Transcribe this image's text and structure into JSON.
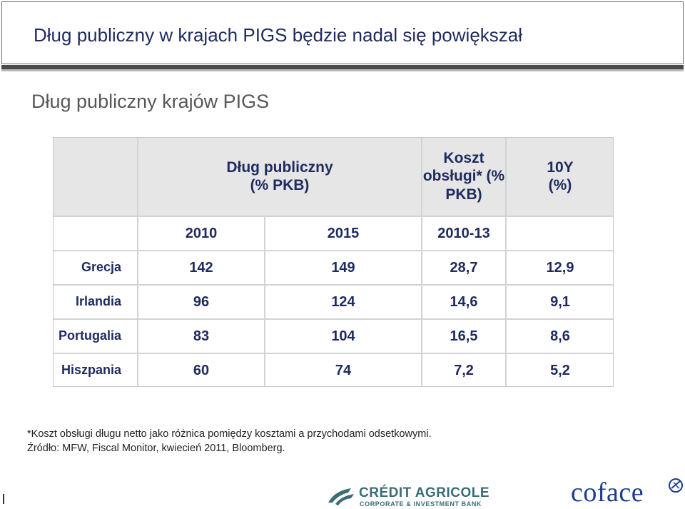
{
  "slide": {
    "title": "Dług publiczny w krajach PIGS będzie nadal się powiększał",
    "subtitle": "Dług publiczny krajów PIGS"
  },
  "table": {
    "header_groups": [
      {
        "line1": "Dług publiczny",
        "line2": "(% PKB)",
        "line3": ""
      },
      {
        "line1": "Koszt",
        "line2": "obsługi* (%",
        "line3": "PKB)"
      },
      {
        "line1": "10Y",
        "line2": "(%)",
        "line3": ""
      }
    ],
    "year_headers": [
      "2010",
      "2015",
      "2010-13",
      ""
    ],
    "rows": [
      {
        "country": "Grecja",
        "values": [
          "142",
          "149",
          "28,7",
          "12,9"
        ]
      },
      {
        "country": "Irlandia",
        "values": [
          "96",
          "124",
          "14,6",
          "9,1"
        ]
      },
      {
        "country": "Portugalia",
        "values": [
          "83",
          "104",
          "16,5",
          "8,6"
        ]
      },
      {
        "country": "Hiszpania",
        "values": [
          "60",
          "74",
          "7,2",
          "5,2"
        ]
      }
    ]
  },
  "footnotes": {
    "note": "*Koszt obsługi długu netto jako różnica pomiędzy kosztami a przychodami odsetkowymi.",
    "source": "Źródło: MFW, Fiscal Monitor, kwiecień 2011, Bloomberg."
  },
  "logos": {
    "credit_agricole_name": "CRÉDIT AGRICOLE",
    "credit_agricole_sub": "CORPORATE & INVESTMENT BANK",
    "coface": "coface"
  },
  "colors": {
    "title_text": "#1f2a5e",
    "table_text": "#1f2a5e",
    "header_bg": "#e6e6e6",
    "ca_teal": "#3a6c76",
    "coface_blue": "#1d3d8f"
  }
}
